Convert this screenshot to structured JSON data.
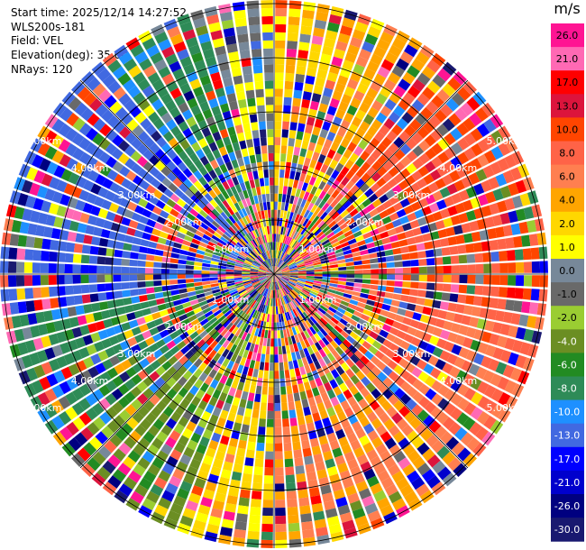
{
  "info": {
    "start_time": "Start time: 2025/12/14 14:27:52",
    "instrument": "WLS200s-181",
    "field": "Field: VEL",
    "elevation": "Elevation(deg): 35.00",
    "nrays": "NRays: 120"
  },
  "chart_data": {
    "type": "heatmap",
    "projection": "polar-ppi",
    "field": "VEL",
    "n_rays": 120,
    "max_range_km": 5.0,
    "range_rings_km": [
      1.0,
      2.0,
      3.0,
      4.0,
      5.0
    ],
    "range_labels": [
      "1.00km",
      "2.00km",
      "3.00km",
      "4.00km",
      "5.00km"
    ],
    "colorbar": {
      "unit": "m/s",
      "tick_labels": [
        "26.0",
        "21.0",
        "17.0",
        "13.0",
        "10.0",
        "8.0",
        "6.0",
        "4.0",
        "2.0",
        "1.0",
        "0.0",
        "-1.0",
        "-2.0",
        "-4.0",
        "-6.0",
        "-8.0",
        "-10.0",
        "-13.0",
        "-17.0",
        "-21.0",
        "-26.0",
        "-30.0"
      ],
      "colors": [
        "#ff1493",
        "#ff69b4",
        "#ff0000",
        "#dc143c",
        "#ff4500",
        "#ff6347",
        "#ff7f50",
        "#ffa500",
        "#ffd700",
        "#ffff00",
        "#778899",
        "#696969",
        "#9acd32",
        "#6b8e23",
        "#228b22",
        "#2e8b57",
        "#1e90ff",
        "#4169e1",
        "#0000ff",
        "#0000cd",
        "#000080",
        "#191970"
      ]
    },
    "sectors": [
      {
        "azimuth_from": 0,
        "azimuth_to": 15,
        "value": 3.0
      },
      {
        "azimuth_from": 15,
        "azimuth_to": 35,
        "value": 5.0
      },
      {
        "azimuth_from": 35,
        "azimuth_to": 100,
        "value": 10.0
      },
      {
        "azimuth_from": 100,
        "azimuth_to": 135,
        "value": 8.0
      },
      {
        "azimuth_from": 135,
        "azimuth_to": 180,
        "value": 6.0
      },
      {
        "azimuth_from": 180,
        "azimuth_to": 200,
        "value": 3.0
      },
      {
        "azimuth_from": 200,
        "azimuth_to": 230,
        "value": -3.0
      },
      {
        "azimuth_from": 230,
        "azimuth_to": 260,
        "value": -7.0
      },
      {
        "azimuth_from": 260,
        "azimuth_to": 320,
        "value": -12.0
      },
      {
        "azimuth_from": 320,
        "azimuth_to": 345,
        "value": -7.0
      },
      {
        "azimuth_from": 345,
        "azimuth_to": 360,
        "value": 0.5
      }
    ]
  }
}
